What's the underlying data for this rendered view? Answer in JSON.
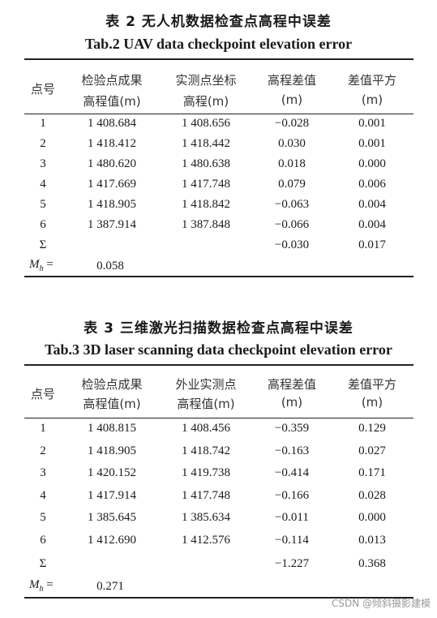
{
  "table2": {
    "title_cn": "表 2   无人机数据检查点高程中误差",
    "title_en": "Tab.2   UAV data checkpoint elevation error",
    "headers": {
      "point": "点号",
      "col1_line1": "检验点成果",
      "col1_line2": "高程值(m)",
      "col2_line1": "实测点坐标",
      "col2_line2": "高程(m)",
      "col3_line1": "高程差值",
      "col3_line2": "(m)",
      "col4_line1": "差值平方",
      "col4_line2": "(m)"
    },
    "rows": [
      [
        "1",
        "1 408.684",
        "1 408.656",
        "−0.028",
        "0.001"
      ],
      [
        "2",
        "1 418.412",
        "1 418.442",
        "0.030",
        "0.001"
      ],
      [
        "3",
        "1 480.620",
        "1 480.638",
        "0.018",
        "0.000"
      ],
      [
        "4",
        "1 417.669",
        "1 417.748",
        "0.079",
        "0.006"
      ],
      [
        "5",
        "1 418.905",
        "1 418.842",
        "−0.063",
        "0.004"
      ],
      [
        "6",
        "1 387.914",
        "1 387.848",
        "−0.066",
        "0.004"
      ]
    ],
    "sum_label": "Σ",
    "sum_diff": "−0.030",
    "sum_sq": "0.017",
    "mh_label": "M",
    "mh_sub": "h",
    "mh_eq": " =",
    "mh_value": "0.058"
  },
  "table3": {
    "title_cn": "表 3   三维激光扫描数据检查点高程中误差",
    "title_en": "Tab.3   3D laser scanning data checkpoint elevation error",
    "headers": {
      "point": "点号",
      "col1_line1": "检验点成果",
      "col1_line2": "高程值(m)",
      "col2_line1": "外业实测点",
      "col2_line2": "高程值(m)",
      "col3_line1": "高程差值",
      "col3_line2": "(m)",
      "col4_line1": "差值平方",
      "col4_line2": "(m)"
    },
    "rows": [
      [
        "1",
        "1 408.815",
        "1 408.456",
        "−0.359",
        "0.129"
      ],
      [
        "2",
        "1 418.905",
        "1 418.742",
        "−0.163",
        "0.027"
      ],
      [
        "3",
        "1 420.152",
        "1 419.738",
        "−0.414",
        "0.171"
      ],
      [
        "4",
        "1 417.914",
        "1 417.748",
        "−0.166",
        "0.028"
      ],
      [
        "5",
        "1 385.645",
        "1 385.634",
        "−0.011",
        "0.000"
      ],
      [
        "6",
        "1 412.690",
        "1 412.576",
        "−0.114",
        "0.013"
      ]
    ],
    "sum_label": "Σ",
    "sum_diff": "−1.227",
    "sum_sq": "0.368",
    "mh_label": "M",
    "mh_sub": "h",
    "mh_eq": " =",
    "mh_value": "0.271"
  },
  "watermark": "CSDN @倾斜摄影建模"
}
